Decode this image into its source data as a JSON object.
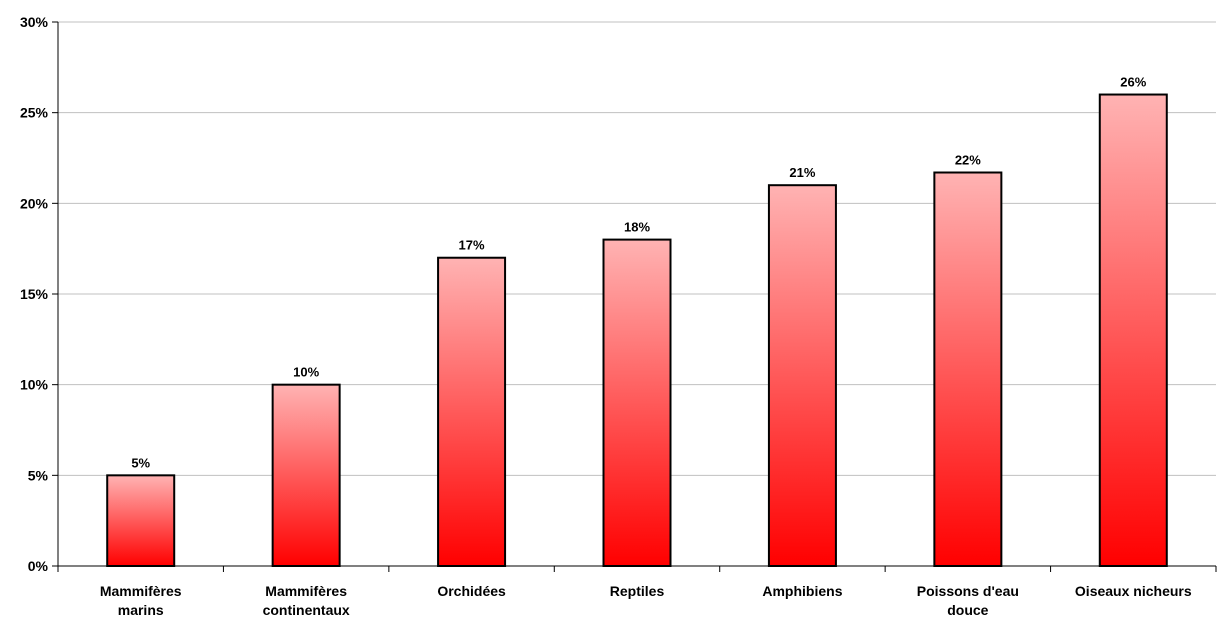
{
  "chart_data": {
    "type": "bar",
    "categories": [
      [
        "Mammifères",
        "marins"
      ],
      [
        "Mammifères",
        "continentaux"
      ],
      [
        "Orchidées"
      ],
      [
        "Reptiles"
      ],
      [
        "Amphibiens"
      ],
      [
        "Poissons d'eau",
        "douce"
      ],
      [
        "Oiseaux nicheurs"
      ]
    ],
    "values": [
      5,
      10,
      17,
      18,
      21,
      21.7,
      26
    ],
    "data_labels": [
      "5%",
      "10%",
      "17%",
      "18%",
      "21%",
      "22%",
      "26%"
    ],
    "ylim": [
      0,
      30
    ],
    "yticks": [
      0,
      5,
      10,
      15,
      20,
      25,
      30
    ],
    "ytick_labels": [
      "0%",
      "5%",
      "10%",
      "15%",
      "20%",
      "25%",
      "30%"
    ],
    "grid": true,
    "legend": "none",
    "title": "",
    "xlabel": "",
    "ylabel": "",
    "colors": {
      "bar_top": "#ffb3b3",
      "bar_bottom": "#ff0000",
      "bar_border": "#000000",
      "grid": "#c0c0c0",
      "axis": "#000000"
    }
  }
}
